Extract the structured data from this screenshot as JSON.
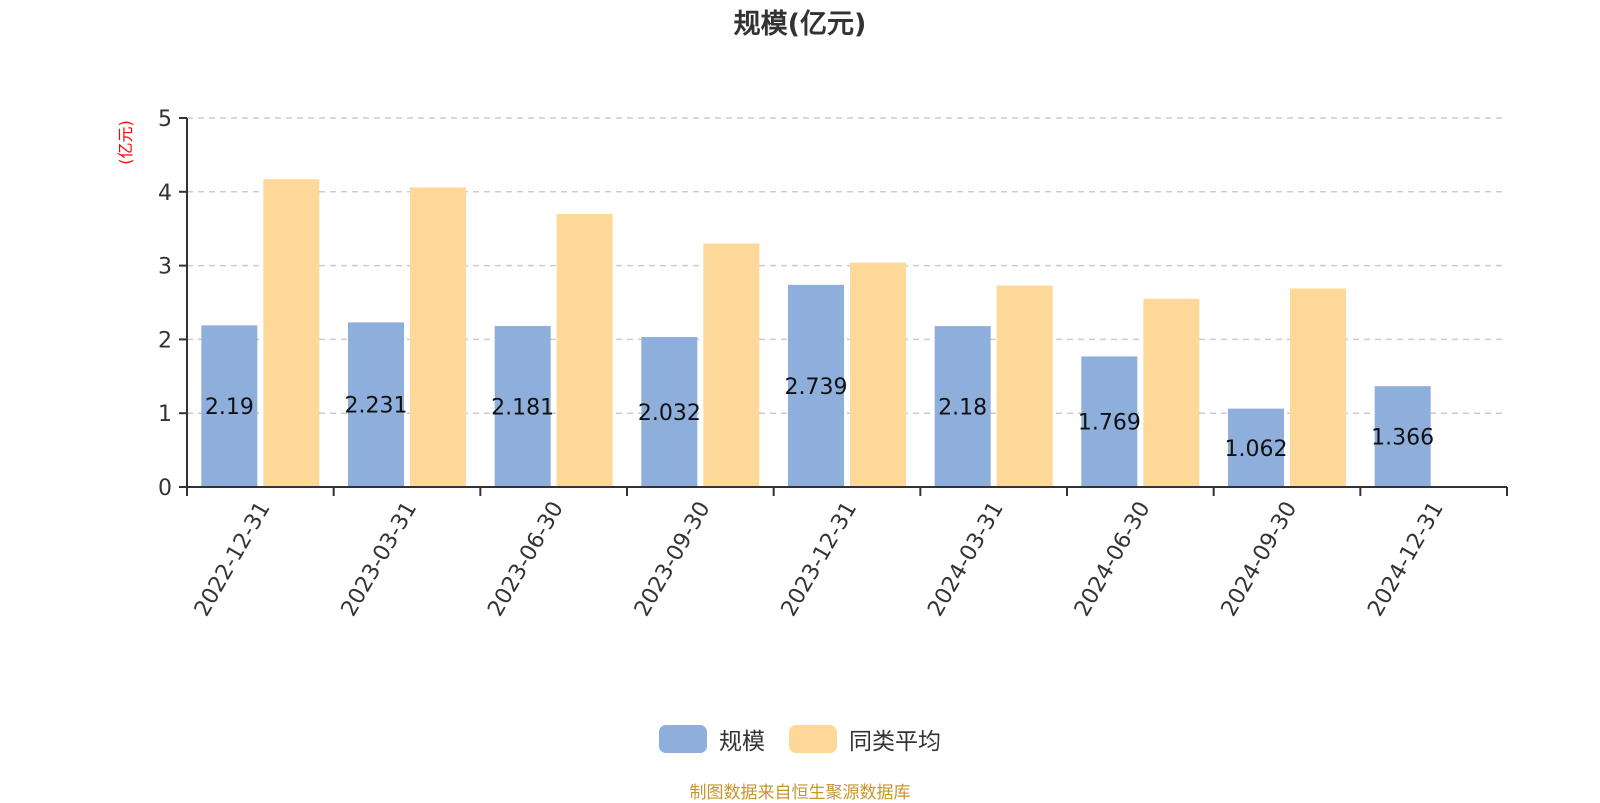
{
  "chart_data": {
    "type": "bar",
    "title": "规模(亿元)",
    "ylabel": "(亿元)",
    "xlabel": "",
    "ylim": [
      0,
      5
    ],
    "yticks": [
      0,
      1,
      2,
      3,
      4,
      5
    ],
    "grid": true,
    "legend_position": "bottom",
    "categories": [
      "2022-12-31",
      "2023-03-31",
      "2023-06-30",
      "2023-09-30",
      "2023-12-31",
      "2024-03-31",
      "2024-06-30",
      "2024-09-30",
      "2024-12-31"
    ],
    "series": [
      {
        "name": "规模",
        "color": "#8eaedb",
        "values": [
          2.19,
          2.231,
          2.181,
          2.032,
          2.739,
          2.18,
          1.769,
          1.062,
          1.366
        ],
        "labels_shown": true
      },
      {
        "name": "同类平均",
        "color": "#fed899",
        "values": [
          4.17,
          4.06,
          3.7,
          3.3,
          3.04,
          2.73,
          2.55,
          2.69,
          null
        ],
        "labels_shown": false
      }
    ]
  },
  "colors": {
    "ylabel": "#ff0000",
    "source_note": "#c8962a",
    "axis": "#333333",
    "grid": "#cccccc"
  },
  "footer": {
    "source": "制图数据来自恒生聚源数据库"
  }
}
